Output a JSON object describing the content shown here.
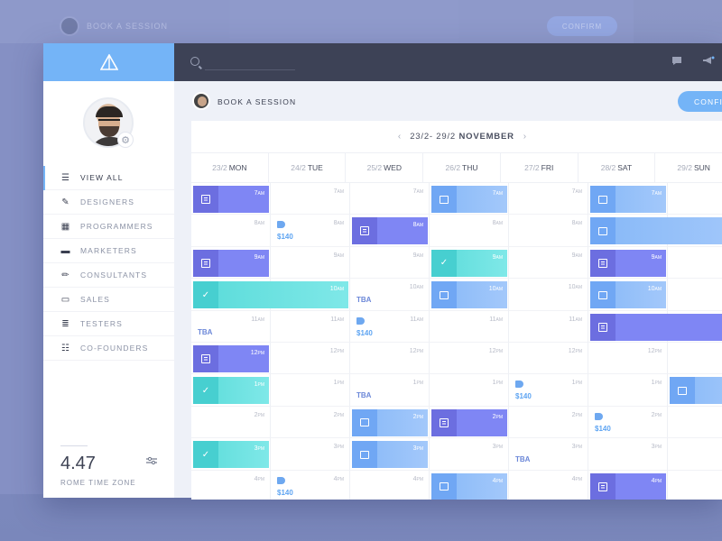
{
  "ghost": {
    "title": "BOOK A SESSION",
    "confirm": "CONFIRM"
  },
  "sidebar": {
    "items": [
      {
        "label": "VIEW ALL",
        "icon": "list-icon",
        "active": true
      },
      {
        "label": "DESIGNERS",
        "icon": "brush-icon"
      },
      {
        "label": "PROGRAMMERS",
        "icon": "code-icon"
      },
      {
        "label": "MARKETERS",
        "icon": "store-icon"
      },
      {
        "label": "CONSULTANTS",
        "icon": "pencil-icon"
      },
      {
        "label": "SALES",
        "icon": "wallet-icon"
      },
      {
        "label": "TESTERS",
        "icon": "checklist-icon"
      },
      {
        "label": "CO-FOUNDERS",
        "icon": "team-icon"
      }
    ],
    "timezone": {
      "time": "4.47",
      "label": "ROME TIME ZONE"
    }
  },
  "topbar": {
    "search_placeholder": ""
  },
  "header": {
    "title": "BOOK A SESSION",
    "confirm_label": "CONFIRM"
  },
  "calendar": {
    "range": "23/2- 29/2",
    "month": "NOVEMBER",
    "days": [
      {
        "date": "23/2",
        "name": "MON"
      },
      {
        "date": "24/2",
        "name": "TUE"
      },
      {
        "date": "25/2",
        "name": "WED"
      },
      {
        "date": "26/2",
        "name": "THU"
      },
      {
        "date": "27/2",
        "name": "FRI"
      },
      {
        "date": "28/2",
        "name": "SAT"
      },
      {
        "date": "29/2",
        "name": "SUN"
      }
    ],
    "hours": [
      {
        "n": "7",
        "p": "AM"
      },
      {
        "n": "8",
        "p": "AM"
      },
      {
        "n": "9",
        "p": "AM"
      },
      {
        "n": "10",
        "p": "AM"
      },
      {
        "n": "11",
        "p": "AM"
      },
      {
        "n": "12",
        "p": "PM"
      },
      {
        "n": "1",
        "p": "PM"
      },
      {
        "n": "2",
        "p": "PM"
      },
      {
        "n": "3",
        "p": "PM"
      },
      {
        "n": "4",
        "p": "PM"
      }
    ],
    "events": [
      {
        "day": 0,
        "hour": 0,
        "kind": "purple",
        "icon": "doc",
        "span": 1
      },
      {
        "day": 0,
        "hour": 2,
        "kind": "purple",
        "icon": "doc",
        "span": 1
      },
      {
        "day": 0,
        "hour": 3,
        "kind": "teal",
        "icon": "check",
        "span": 2
      },
      {
        "day": 0,
        "hour": 5,
        "kind": "purple",
        "icon": "doc",
        "span": 1
      },
      {
        "day": 0,
        "hour": 6,
        "kind": "teal",
        "icon": "check",
        "span": 1
      },
      {
        "day": 0,
        "hour": 8,
        "kind": "teal",
        "icon": "check",
        "span": 1
      },
      {
        "day": 2,
        "hour": 1,
        "kind": "purple",
        "icon": "doc",
        "span": 1
      },
      {
        "day": 2,
        "hour": 7,
        "kind": "blue",
        "icon": "undo",
        "span": 1
      },
      {
        "day": 2,
        "hour": 8,
        "kind": "blue",
        "icon": "undo",
        "span": 1
      },
      {
        "day": 3,
        "hour": 0,
        "kind": "blue",
        "icon": "undo",
        "span": 1
      },
      {
        "day": 3,
        "hour": 2,
        "kind": "teal",
        "icon": "check",
        "span": 1
      },
      {
        "day": 3,
        "hour": 3,
        "kind": "blue",
        "icon": "undo",
        "span": 1
      },
      {
        "day": 3,
        "hour": 7,
        "kind": "purple",
        "icon": "doc",
        "span": 1
      },
      {
        "day": 3,
        "hour": 9,
        "kind": "blue",
        "icon": "undo",
        "span": 1
      },
      {
        "day": 5,
        "hour": 0,
        "kind": "blue",
        "icon": "undo",
        "span": 1
      },
      {
        "day": 5,
        "hour": 1,
        "kind": "blue",
        "icon": "undo",
        "span": 2
      },
      {
        "day": 5,
        "hour": 2,
        "kind": "purple",
        "icon": "doc",
        "span": 1
      },
      {
        "day": 5,
        "hour": 3,
        "kind": "blue",
        "icon": "undo",
        "span": 1
      },
      {
        "day": 5,
        "hour": 4,
        "kind": "purple",
        "icon": "doc",
        "span": 2
      },
      {
        "day": 5,
        "hour": 9,
        "kind": "purple",
        "icon": "doc",
        "span": 1
      },
      {
        "day": 6,
        "hour": 6,
        "kind": "blue",
        "icon": "undo",
        "span": 1
      }
    ],
    "labels": [
      {
        "day": 0,
        "hour": 4,
        "type": "tba",
        "text": "TBA"
      },
      {
        "day": 1,
        "hour": 1,
        "type": "price",
        "text": "$140"
      },
      {
        "day": 1,
        "hour": 9,
        "type": "price",
        "text": "$140"
      },
      {
        "day": 2,
        "hour": 3,
        "type": "tba",
        "text": "TBA"
      },
      {
        "day": 2,
        "hour": 4,
        "type": "price",
        "text": "$140"
      },
      {
        "day": 2,
        "hour": 6,
        "type": "tba",
        "text": "TBA"
      },
      {
        "day": 4,
        "hour": 6,
        "type": "price",
        "text": "$140"
      },
      {
        "day": 4,
        "hour": 8,
        "type": "tba",
        "text": "TBA"
      },
      {
        "day": 5,
        "hour": 7,
        "type": "price",
        "text": "$140"
      }
    ]
  }
}
